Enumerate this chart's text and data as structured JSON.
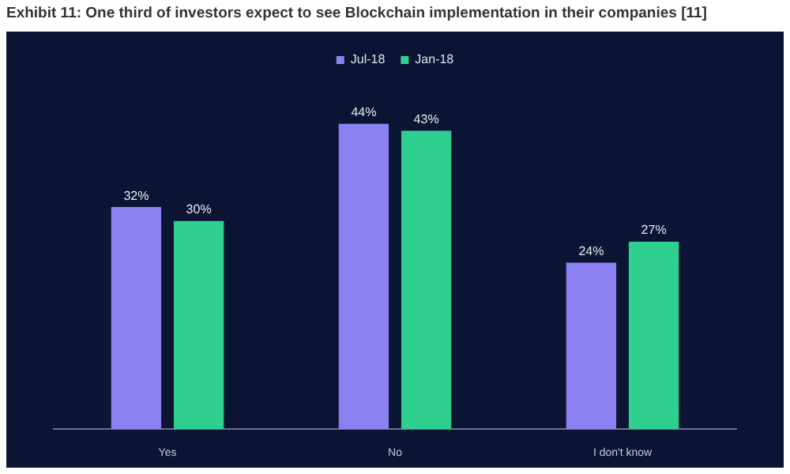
{
  "chart_data": {
    "type": "bar",
    "title": "Exhibit 11: One third of investors expect to see Blockchain implementation in their companies [11]",
    "categories": [
      "Yes",
      "No",
      "I don't know"
    ],
    "series": [
      {
        "name": "Jul-18",
        "color": "#8b80f0",
        "values": [
          32,
          44,
          24
        ],
        "value_labels": [
          "32%",
          "44%",
          "24%"
        ]
      },
      {
        "name": "Jan-18",
        "color": "#2fcf8f",
        "values": [
          30,
          43,
          27
        ],
        "value_labels": [
          "30%",
          "43%",
          "27%"
        ]
      }
    ],
    "legend": "top",
    "grid": false
  }
}
